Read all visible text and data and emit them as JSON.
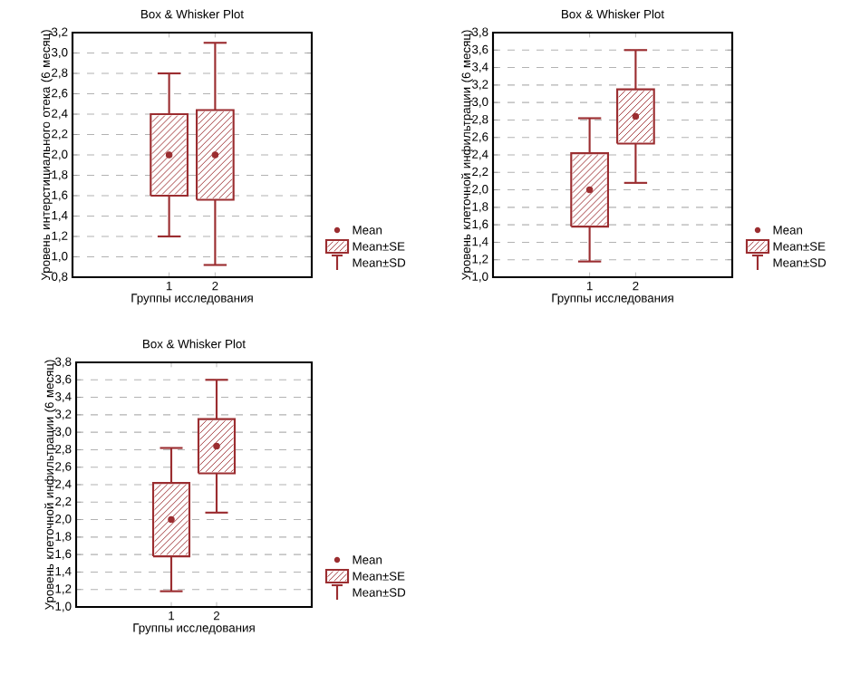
{
  "chart_data": [
    {
      "type": "box",
      "title": "Box & Whisker Plot",
      "xlabel": "Группы исследования",
      "ylabel": "Уровень интерстициального отека (6 месяц)",
      "categories": [
        "1",
        "2"
      ],
      "color": "#9b2d30",
      "marker": "circle",
      "grid": "y",
      "boxes": [
        {
          "low": 1.2,
          "q1": 1.6,
          "mean": 2.0,
          "q3": 2.4,
          "high": 2.8
        },
        {
          "low": 0.92,
          "q1": 1.56,
          "mean": 2.0,
          "q3": 2.44,
          "high": 3.1
        }
      ],
      "ylim": [
        0.8,
        3.2
      ],
      "yticks": [
        {
          "value": 0.8,
          "label": "0,8"
        },
        {
          "value": 1.0,
          "label": "1,0"
        },
        {
          "value": 1.2,
          "label": "1,2"
        },
        {
          "value": 1.4,
          "label": "1,4"
        },
        {
          "value": 1.6,
          "label": "1,6"
        },
        {
          "value": 1.8,
          "label": "1,8"
        },
        {
          "value": 2.0,
          "label": "2,0"
        },
        {
          "value": 2.2,
          "label": "2,2"
        },
        {
          "value": 2.4,
          "label": "2,4"
        },
        {
          "value": 2.6,
          "label": "2,6"
        },
        {
          "value": 2.8,
          "label": "2,8"
        },
        {
          "value": 3.0,
          "label": "3,0"
        },
        {
          "value": 3.2,
          "label": "3,2"
        }
      ],
      "annotations": [
        "Mean",
        "Mean±SE",
        "Mean±SD"
      ]
    },
    {
      "type": "box",
      "title": "Box & Whisker Plot",
      "xlabel": "Группы исследования",
      "ylabel": "Уровень клеточной инфильтрации (6 месяц)",
      "categories": [
        "1",
        "2"
      ],
      "color": "#9b2d30",
      "marker": "circle",
      "grid": "y",
      "boxes": [
        {
          "low": 1.18,
          "q1": 1.58,
          "mean": 2.0,
          "q3": 2.42,
          "high": 2.82
        },
        {
          "low": 2.08,
          "q1": 2.53,
          "mean": 2.84,
          "q3": 3.15,
          "high": 3.6
        }
      ],
      "ylim": [
        1.0,
        3.8
      ],
      "yticks": [
        {
          "value": 1.0,
          "label": "1,0"
        },
        {
          "value": 1.2,
          "label": "1,2"
        },
        {
          "value": 1.4,
          "label": "1,4"
        },
        {
          "value": 1.6,
          "label": "1,6"
        },
        {
          "value": 1.8,
          "label": "1,8"
        },
        {
          "value": 2.0,
          "label": "2,0"
        },
        {
          "value": 2.2,
          "label": "2,2"
        },
        {
          "value": 2.4,
          "label": "2,4"
        },
        {
          "value": 2.6,
          "label": "2,6"
        },
        {
          "value": 2.8,
          "label": "2,8"
        },
        {
          "value": 3.0,
          "label": "3,0"
        },
        {
          "value": 3.2,
          "label": "3,2"
        },
        {
          "value": 3.4,
          "label": "3,4"
        },
        {
          "value": 3.6,
          "label": "3,6"
        },
        {
          "value": 3.8,
          "label": "3,8"
        }
      ],
      "annotations": [
        "Mean",
        "Mean±SE",
        "Mean±SD"
      ]
    },
    {
      "type": "box",
      "title": "Box & Whisker Plot",
      "xlabel": "Группы исследования",
      "ylabel": "Уровень клеточной инфильтрации (6 месяц)",
      "categories": [
        "1",
        "2"
      ],
      "color": "#9b2d30",
      "marker": "circle",
      "grid": "y",
      "boxes": [
        {
          "low": 1.18,
          "q1": 1.58,
          "mean": 2.0,
          "q3": 2.42,
          "high": 2.82
        },
        {
          "low": 2.08,
          "q1": 2.53,
          "mean": 2.84,
          "q3": 3.15,
          "high": 3.6
        }
      ],
      "ylim": [
        1.0,
        3.8
      ],
      "yticks": [
        {
          "value": 1.0,
          "label": "1,0"
        },
        {
          "value": 1.2,
          "label": "1,2"
        },
        {
          "value": 1.4,
          "label": "1,4"
        },
        {
          "value": 1.6,
          "label": "1,6"
        },
        {
          "value": 1.8,
          "label": "1,8"
        },
        {
          "value": 2.0,
          "label": "2,0"
        },
        {
          "value": 2.2,
          "label": "2,2"
        },
        {
          "value": 2.4,
          "label": "2,4"
        },
        {
          "value": 2.6,
          "label": "2,6"
        },
        {
          "value": 2.8,
          "label": "2,8"
        },
        {
          "value": 3.0,
          "label": "3,0"
        },
        {
          "value": 3.2,
          "label": "3,2"
        },
        {
          "value": 3.4,
          "label": "3,4"
        },
        {
          "value": 3.6,
          "label": "3,6"
        },
        {
          "value": 3.8,
          "label": "3,8"
        }
      ],
      "annotations": [
        "Mean",
        "Mean±SE",
        "Mean±SD"
      ]
    }
  ]
}
